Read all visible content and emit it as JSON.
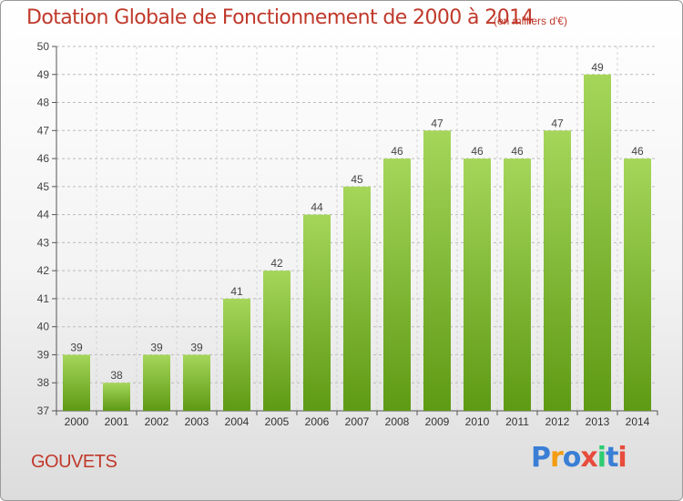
{
  "header": {
    "title": "Dotation Globale de Fonctionnement de 2000 à 2014",
    "unit": "(en milliers d'€)"
  },
  "footer": {
    "commune": "GOUVETS",
    "logo_text": "Proxiti"
  },
  "colors": {
    "title": "#c0392b",
    "bar_top": "#a5d65a",
    "bar_bottom": "#5e9a14",
    "axis": "#555555",
    "grid": "#bbbbbb",
    "logo": [
      "#3a7fd5",
      "#f39c12",
      "#3a7fd5",
      "#e74c3c",
      "#2ecc71",
      "#3a7fd5",
      "#e74c3c"
    ]
  },
  "chart_data": {
    "type": "bar",
    "title": "Dotation Globale de Fonctionnement de 2000 à 2014",
    "subtitle": "(en milliers d'€)",
    "xlabel": "",
    "ylabel": "",
    "categories": [
      "2000",
      "2001",
      "2002",
      "2003",
      "2004",
      "2005",
      "2006",
      "2007",
      "2008",
      "2009",
      "2010",
      "2011",
      "2012",
      "2013",
      "2014"
    ],
    "values": [
      39,
      38,
      39,
      39,
      41,
      42,
      44,
      45,
      46,
      47,
      46,
      46,
      47,
      49,
      46
    ],
    "ylim": [
      37,
      50
    ],
    "yticks": [
      37,
      38,
      39,
      40,
      41,
      42,
      43,
      44,
      45,
      46,
      47,
      48,
      49,
      50
    ],
    "grid": "y-dashed",
    "data_labels": true
  }
}
